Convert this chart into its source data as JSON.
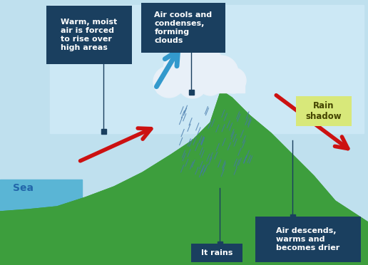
{
  "bg_color": "#bfe0ee",
  "ground_color": "#3d9e3d",
  "sea_color": "#5ab5d5",
  "box_color": "#1a3f5f",
  "box_text_color": "#ffffff",
  "rain_shadow_color": "#d8e87a",
  "cloud_color": "#e8f0f8",
  "rain_color": "#4477aa",
  "arrow_red": "#cc1111",
  "arrow_blue": "#3399cc",
  "label_sea": "Sea",
  "label_sea_color": "#2266aa",
  "label_it_rains": "It rains",
  "label_warm_moist": "Warm, moist\nair is forced\nto rise over\nhigh areas",
  "label_air_cools": "Air cools and\ncondenses,\nforming\nclouds",
  "label_air_descends": "Air descends,\nwarms and\nbecomes drier",
  "label_rain_shadow": "Rain\nshadow",
  "figsize": [
    5.16,
    3.72
  ],
  "dpi": 100
}
